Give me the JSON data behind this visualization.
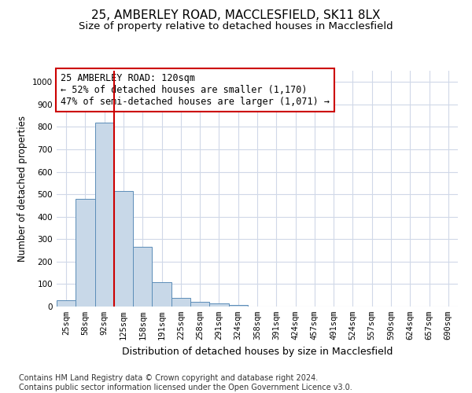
{
  "title1": "25, AMBERLEY ROAD, MACCLESFIELD, SK11 8LX",
  "title2": "Size of property relative to detached houses in Macclesfield",
  "xlabel": "Distribution of detached houses by size in Macclesfield",
  "ylabel": "Number of detached properties",
  "categories": [
    "25sqm",
    "58sqm",
    "92sqm",
    "125sqm",
    "158sqm",
    "191sqm",
    "225sqm",
    "258sqm",
    "291sqm",
    "324sqm",
    "358sqm",
    "391sqm",
    "424sqm",
    "457sqm",
    "491sqm",
    "524sqm",
    "557sqm",
    "590sqm",
    "624sqm",
    "657sqm",
    "690sqm"
  ],
  "values": [
    28,
    480,
    820,
    515,
    265,
    110,
    38,
    20,
    15,
    8,
    0,
    0,
    0,
    0,
    0,
    0,
    0,
    0,
    0,
    0,
    0
  ],
  "bar_color": "#c8d8e8",
  "bar_edge_color": "#5b8db8",
  "vline_x": 2.5,
  "vline_color": "#cc0000",
  "annotation_text": "25 AMBERLEY ROAD: 120sqm\n← 52% of detached houses are smaller (1,170)\n47% of semi-detached houses are larger (1,071) →",
  "annotation_box_color": "#cc0000",
  "ylim": [
    0,
    1050
  ],
  "yticks": [
    0,
    100,
    200,
    300,
    400,
    500,
    600,
    700,
    800,
    900,
    1000
  ],
  "bg_color": "#ffffff",
  "grid_color": "#d0d8e8",
  "footnote": "Contains HM Land Registry data © Crown copyright and database right 2024.\nContains public sector information licensed under the Open Government Licence v3.0.",
  "title1_fontsize": 11,
  "title2_fontsize": 9.5,
  "xlabel_fontsize": 9,
  "ylabel_fontsize": 8.5,
  "tick_fontsize": 7.5,
  "annotation_fontsize": 8.5,
  "footnote_fontsize": 7
}
